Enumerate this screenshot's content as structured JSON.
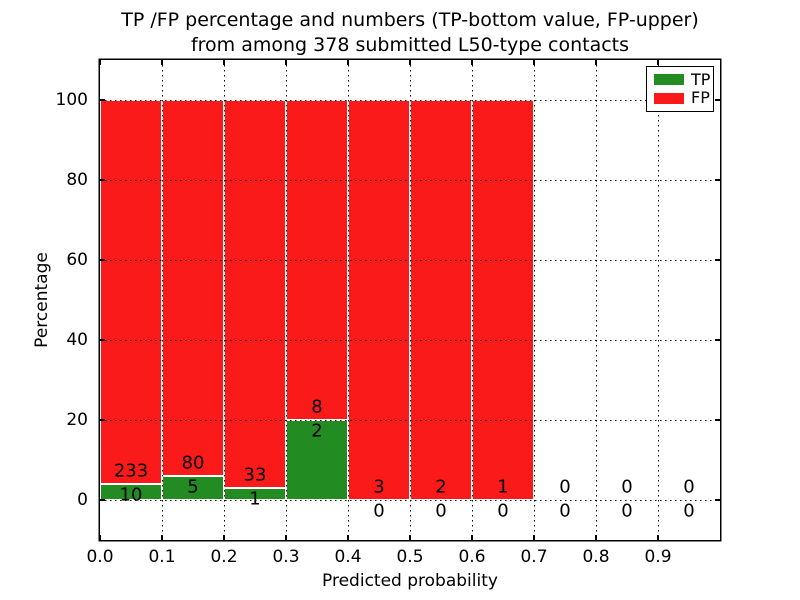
{
  "title": {
    "line1": "TP /FP percentage and numbers (TP-bottom value, FP-upper)",
    "line2": "from among 378 submitted L50-type contacts"
  },
  "chart_data": {
    "type": "bar",
    "subtype": "stacked-percentage-histogram",
    "title": "TP /FP percentage and numbers (TP-bottom value, FP-upper) from among 378 submitted L50-type contacts",
    "xlabel": "Predicted probability",
    "ylabel": "Percentage",
    "xlim": [
      0.0,
      1.0
    ],
    "ylim": [
      -10,
      110
    ],
    "x_tick_values": [
      0.0,
      0.1,
      0.2,
      0.3,
      0.4,
      0.5,
      0.6,
      0.7,
      0.8,
      0.9
    ],
    "x_tick_labels": [
      "0.0",
      "0.1",
      "0.2",
      "0.3",
      "0.4",
      "0.5",
      "0.6",
      "0.7",
      "0.8",
      "0.9"
    ],
    "y_tick_values": [
      0,
      20,
      40,
      60,
      80,
      100
    ],
    "y_tick_labels": [
      "0",
      "20",
      "40",
      "60",
      "80",
      "100"
    ],
    "grid": "dotted",
    "bin_width": 0.1,
    "total_contacts": 378,
    "series": [
      {
        "name": "TP",
        "color": "#228b22"
      },
      {
        "name": "FP",
        "color": "#fa1a1a"
      }
    ],
    "bins": [
      {
        "x_start": 0.0,
        "tp": 10,
        "fp": 233,
        "tp_pct": 4.1,
        "fp_pct": 95.9
      },
      {
        "x_start": 0.1,
        "tp": 5,
        "fp": 80,
        "tp_pct": 5.9,
        "fp_pct": 94.1
      },
      {
        "x_start": 0.2,
        "tp": 1,
        "fp": 33,
        "tp_pct": 2.9,
        "fp_pct": 97.1
      },
      {
        "x_start": 0.3,
        "tp": 2,
        "fp": 8,
        "tp_pct": 20.0,
        "fp_pct": 80.0
      },
      {
        "x_start": 0.4,
        "tp": 0,
        "fp": 3,
        "tp_pct": 0.0,
        "fp_pct": 100.0
      },
      {
        "x_start": 0.5,
        "tp": 0,
        "fp": 2,
        "tp_pct": 0.0,
        "fp_pct": 100.0
      },
      {
        "x_start": 0.6,
        "tp": 0,
        "fp": 1,
        "tp_pct": 0.0,
        "fp_pct": 100.0
      },
      {
        "x_start": 0.7,
        "tp": 0,
        "fp": 0,
        "tp_pct": 0.0,
        "fp_pct": 0.0
      },
      {
        "x_start": 0.8,
        "tp": 0,
        "fp": 0,
        "tp_pct": 0.0,
        "fp_pct": 0.0
      },
      {
        "x_start": 0.9,
        "tp": 0,
        "fp": 0,
        "tp_pct": 0.0,
        "fp_pct": 0.0
      }
    ],
    "legend": {
      "position": "upper-right",
      "entries": [
        {
          "label": "TP",
          "color": "#228b22"
        },
        {
          "label": "FP",
          "color": "#fa1a1a"
        }
      ]
    }
  },
  "colors": {
    "background": "#ffffff",
    "frame": "#000000",
    "grid": "#000000",
    "text": "#000000",
    "bar_edge": "#ffffff",
    "tp": "#228b22",
    "fp": "#fa1a1a"
  }
}
